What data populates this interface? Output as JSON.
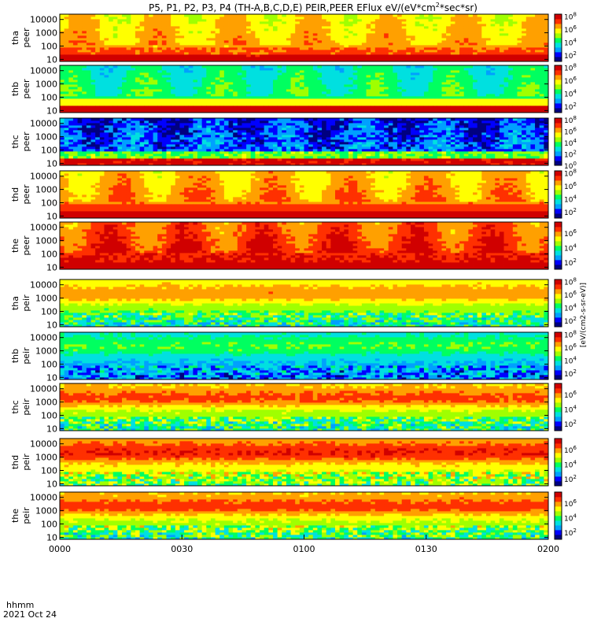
{
  "chart_data": {
    "type": "heatmap",
    "title": "P5, P1, P2, P3, P4 (TH-A,B,C,D,E) PEIR,PEER EFlux eV/(eV*cm2*sec*sr)",
    "title_parts": {
      "prefix": "P5, P1, P2, P3, P4 (TH-A,B,C,D,E) PEIR,PEER EFlux eV/(eV*cm",
      "sup": "2",
      "suffix": "*sec*sr)"
    },
    "x_axis": {
      "corner_label_1": "hhmm",
      "corner_label_2": "2021 Oct 24",
      "ticks": [
        "0000",
        "0030",
        "0100",
        "0130",
        "0200"
      ],
      "range_minutes": [
        0,
        120
      ]
    },
    "y_axis": {
      "scale": "log",
      "range_eV": [
        7,
        25000
      ],
      "ticks": [
        "10",
        "100",
        "1000",
        "10000"
      ]
    },
    "colorbar_label": "[eV/(cm2-s-sr-eV)]",
    "colormap": [
      "#000080",
      "#0000ff",
      "#00a0ff",
      "#00e0e0",
      "#00ff60",
      "#a0ff00",
      "#ffff00",
      "#ffa000",
      "#ff3000",
      "#d00000"
    ],
    "panels": [
      {
        "probe": "tha",
        "instrument": "peer",
        "cb_ticks": [
          "10^8",
          "10^6",
          "10^4",
          "10^2"
        ],
        "cb_log_range": [
          1,
          8.3
        ],
        "base_log": 6.6,
        "low_band_log": 7.9
      },
      {
        "probe": "thb",
        "instrument": "peer",
        "cb_ticks": [
          "10^8",
          "10^6",
          "10^4",
          "10^2"
        ],
        "cb_log_range": [
          1,
          8.3
        ],
        "base_log": 4.6,
        "low_band_log": 8.0
      },
      {
        "probe": "thc",
        "instrument": "peer",
        "cb_ticks": [
          "10^8",
          "10^6",
          "10^4",
          "10^2",
          "10^0"
        ],
        "cb_log_range": [
          0,
          8.3
        ],
        "base_log": 2.0,
        "low_band_log": 8.0
      },
      {
        "probe": "thd",
        "instrument": "peer",
        "cb_ticks": [
          "10^8",
          "10^6",
          "10^4",
          "10^2"
        ],
        "cb_log_range": [
          1,
          8.3
        ],
        "base_log": 6.9,
        "low_band_log": 7.9
      },
      {
        "probe": "the",
        "instrument": "peer",
        "cb_ticks": [
          "10^6",
          "10^4",
          "10^2"
        ],
        "cb_log_range": [
          1,
          7.5
        ],
        "base_log": 7.0,
        "low_band_log": 7.2
      },
      {
        "probe": "tha",
        "instrument": "peir",
        "cb_ticks": [
          "10^8",
          "10^6",
          "10^4",
          "10^2"
        ],
        "cb_log_range": [
          1,
          8.3
        ],
        "base_log": 5.6,
        "low_band_log": 3.8
      },
      {
        "probe": "thb",
        "instrument": "peir",
        "cb_ticks": [
          "10^8",
          "10^6",
          "10^4",
          "10^2"
        ],
        "cb_log_range": [
          1,
          8.3
        ],
        "base_log": 3.6,
        "low_band_log": 2.6
      },
      {
        "probe": "thc",
        "instrument": "peir",
        "cb_ticks": [
          "10^6",
          "10^4",
          "10^2"
        ],
        "cb_log_range": [
          1,
          7.5
        ],
        "base_log": 5.4,
        "low_band_log": 3.6
      },
      {
        "probe": "thd",
        "instrument": "peir",
        "cb_ticks": [
          "10^6",
          "10^4",
          "10^2"
        ],
        "cb_log_range": [
          1,
          7.5
        ],
        "base_log": 5.8,
        "low_band_log": 4.2
      },
      {
        "probe": "the",
        "instrument": "peir",
        "cb_ticks": [
          "10^6",
          "10^4",
          "10^2"
        ],
        "cb_log_range": [
          1,
          7.5
        ],
        "base_log": 5.5,
        "low_band_log": 3.8
      }
    ],
    "grid": false,
    "legend": "none"
  }
}
